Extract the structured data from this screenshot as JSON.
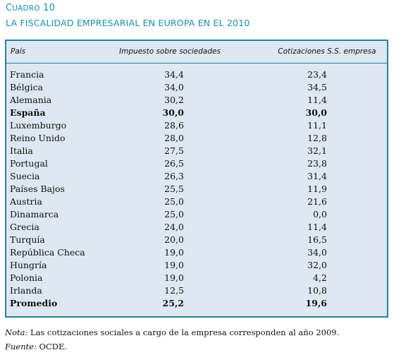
{
  "cuadro": {
    "prefix": "C",
    "rest": "uadro",
    "number": " 10"
  },
  "title": "LA FISCALIDAD EMPRESARIAL EN EUROPA EN EL 2010",
  "headers": {
    "country": "País",
    "col1": "Impuesto sobre sociedades",
    "col2": "Cotizaciones S.S. empresa"
  },
  "rows": [
    {
      "name": "Francia",
      "v1": "34,4",
      "v2": "23,4"
    },
    {
      "name": "Bélgica",
      "v1": "34,0",
      "v2": "34,5"
    },
    {
      "name": "Alemania",
      "v1": "30,2",
      "v2": "11,4"
    },
    {
      "name": "España",
      "v1": "30,0",
      "v2": "30,0"
    },
    {
      "name": "Luxemburgo",
      "v1": "28,6",
      "v2": "11,1"
    },
    {
      "name": "Reino Unido",
      "v1": "28,0",
      "v2": "12,8"
    },
    {
      "name": "Italia",
      "v1": "27,5",
      "v2": "32,1"
    },
    {
      "name": "Portugal",
      "v1": "26,5",
      "v2": "23,8"
    },
    {
      "name": "Suecia",
      "v1": "26,3",
      "v2": "31,4"
    },
    {
      "name": "Países Bajos",
      "v1": "25,5",
      "v2": "11,9"
    },
    {
      "name": "Austria",
      "v1": "25,0",
      "v2": "21,6"
    },
    {
      "name": "Dinamarca",
      "v1": "25,0",
      "v2": "0,0"
    },
    {
      "name": "Grecia",
      "v1": "24,0",
      "v2": "11,4"
    },
    {
      "name": "Turquía",
      "v1": "20,0",
      "v2": "16,5"
    },
    {
      "name": "República Checa",
      "v1": "19,0",
      "v2": "34,0"
    },
    {
      "name": "Hungría",
      "v1": "19,0",
      "v2": "32,0"
    },
    {
      "name": "Polonia",
      "v1": "19,0",
      "v2": "4,2"
    },
    {
      "name": "Irlanda",
      "v1": "12,5",
      "v2": "10,8"
    },
    {
      "name": "Promedio",
      "v1": "25,2",
      "v2": "19,6"
    }
  ],
  "bold_rows": [
    "España",
    "Promedio"
  ],
  "nota": {
    "label": "Nota:",
    "text": " Las cotizaciones sociales a cargo de la empresa corresponden al año 2009."
  },
  "fuente": {
    "label": "Fuente:",
    "text": " OCDE."
  },
  "colors": {
    "accent": "#1a8fb0",
    "table_bg": "#dde8f2",
    "border": "#2a7fa0"
  }
}
